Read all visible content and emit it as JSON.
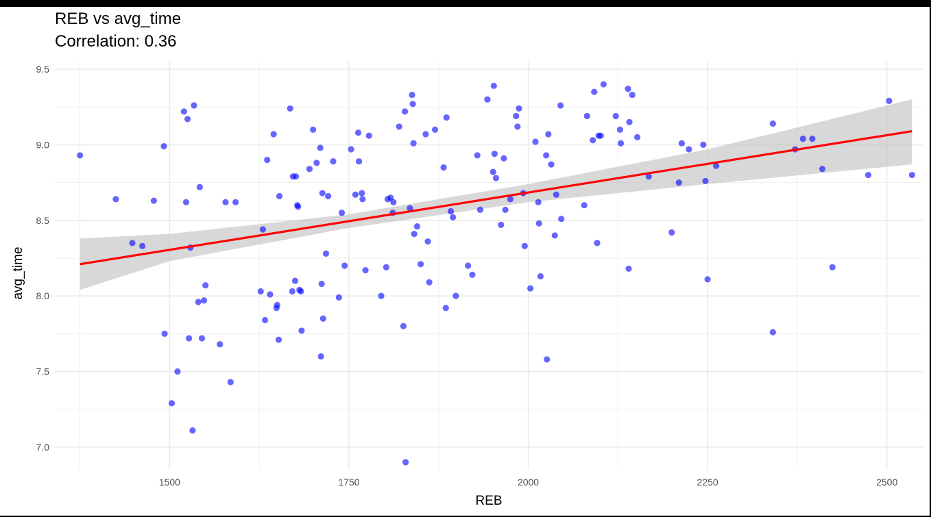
{
  "chart_data": {
    "type": "scatter",
    "title": "REB vs avg_time",
    "subtitle": "Correlation: 0.36",
    "xlabel": "REB",
    "ylabel": "avg_time",
    "xlim": [
      1340,
      2550
    ],
    "ylim": [
      6.85,
      9.55
    ],
    "x_ticks": [
      1500,
      1750,
      2000,
      2250,
      2500
    ],
    "y_ticks": [
      7.0,
      7.5,
      8.0,
      8.5,
      9.0,
      9.5
    ],
    "grid": true,
    "point_color": "#0000ff",
    "trend_color": "#ff0000",
    "band_color": "#bebebe",
    "trend_line": {
      "x": [
        1375,
        2535
      ],
      "y": [
        8.21,
        9.09
      ]
    },
    "confidence_band": {
      "x": [
        1375,
        1500,
        1750,
        2000,
        2250,
        2535
      ],
      "lower": [
        8.04,
        8.23,
        8.45,
        8.62,
        8.74,
        8.87
      ],
      "upper": [
        8.38,
        8.41,
        8.54,
        8.74,
        8.97,
        9.3
      ]
    },
    "points": [
      [
        1375,
        8.93
      ],
      [
        1425,
        8.64
      ],
      [
        1448,
        8.35
      ],
      [
        1462,
        8.33
      ],
      [
        1478,
        8.63
      ],
      [
        1492,
        8.99
      ],
      [
        1493,
        7.75
      ],
      [
        1503,
        7.29
      ],
      [
        1511,
        7.5
      ],
      [
        1520,
        9.22
      ],
      [
        1523,
        8.62
      ],
      [
        1525,
        9.17
      ],
      [
        1527,
        7.72
      ],
      [
        1529,
        8.32
      ],
      [
        1532,
        7.11
      ],
      [
        1534,
        9.26
      ],
      [
        1540,
        7.96
      ],
      [
        1542,
        8.72
      ],
      [
        1545,
        7.72
      ],
      [
        1548,
        7.97
      ],
      [
        1550,
        8.07
      ],
      [
        1570,
        7.68
      ],
      [
        1578,
        8.62
      ],
      [
        1585,
        7.43
      ],
      [
        1592,
        8.62
      ],
      [
        1627,
        8.03
      ],
      [
        1630,
        8.44
      ],
      [
        1633,
        7.84
      ],
      [
        1636,
        8.9
      ],
      [
        1640,
        8.01
      ],
      [
        1645,
        9.07
      ],
      [
        1649,
        7.92
      ],
      [
        1650,
        7.94
      ],
      [
        1652,
        7.71
      ],
      [
        1653,
        8.66
      ],
      [
        1668,
        9.24
      ],
      [
        1671,
        8.03
      ],
      [
        1672,
        8.79
      ],
      [
        1675,
        8.1
      ],
      [
        1676,
        8.79
      ],
      [
        1678,
        8.6
      ],
      [
        1679,
        8.59
      ],
      [
        1681,
        8.04
      ],
      [
        1683,
        8.03
      ],
      [
        1684,
        7.77
      ],
      [
        1695,
        8.84
      ],
      [
        1700,
        9.1
      ],
      [
        1705,
        8.88
      ],
      [
        1710,
        8.98
      ],
      [
        1712,
        8.08
      ],
      [
        1713,
        8.68
      ],
      [
        1714,
        7.85
      ],
      [
        1711,
        7.6
      ],
      [
        1718,
        8.28
      ],
      [
        1721,
        8.66
      ],
      [
        1728,
        8.89
      ],
      [
        1736,
        7.99
      ],
      [
        1740,
        8.55
      ],
      [
        1744,
        8.2
      ],
      [
        1753,
        8.97
      ],
      [
        1759,
        8.67
      ],
      [
        1763,
        9.08
      ],
      [
        1764,
        8.89
      ],
      [
        1768,
        8.68
      ],
      [
        1769,
        8.64
      ],
      [
        1773,
        8.17
      ],
      [
        1778,
        9.06
      ],
      [
        1795,
        8.0
      ],
      [
        1802,
        8.19
      ],
      [
        1804,
        8.64
      ],
      [
        1808,
        8.65
      ],
      [
        1811,
        8.55
      ],
      [
        1812,
        8.62
      ],
      [
        1820,
        9.12
      ],
      [
        1826,
        7.8
      ],
      [
        1828,
        9.22
      ],
      [
        1829,
        6.9
      ],
      [
        1835,
        8.58
      ],
      [
        1838,
        9.33
      ],
      [
        1839,
        9.27
      ],
      [
        1840,
        9.01
      ],
      [
        1841,
        8.41
      ],
      [
        1845,
        8.46
      ],
      [
        1850,
        8.21
      ],
      [
        1857,
        9.07
      ],
      [
        1860,
        8.36
      ],
      [
        1862,
        8.09
      ],
      [
        1870,
        9.1
      ],
      [
        1882,
        8.85
      ],
      [
        1885,
        7.92
      ],
      [
        1886,
        9.18
      ],
      [
        1892,
        8.56
      ],
      [
        1895,
        8.52
      ],
      [
        1899,
        8.0
      ],
      [
        1916,
        8.2
      ],
      [
        1922,
        8.14
      ],
      [
        1929,
        8.93
      ],
      [
        1933,
        8.57
      ],
      [
        1943,
        9.3
      ],
      [
        1951,
        8.82
      ],
      [
        1952,
        9.39
      ],
      [
        1953,
        8.94
      ],
      [
        1955,
        8.78
      ],
      [
        1962,
        8.47
      ],
      [
        1966,
        8.91
      ],
      [
        1968,
        8.57
      ],
      [
        1975,
        8.64
      ],
      [
        1983,
        9.19
      ],
      [
        1985,
        9.12
      ],
      [
        1987,
        9.24
      ],
      [
        1993,
        8.68
      ],
      [
        1995,
        8.33
      ],
      [
        2003,
        8.05
      ],
      [
        2010,
        9.02
      ],
      [
        2014,
        8.62
      ],
      [
        2015,
        8.48
      ],
      [
        2017,
        8.13
      ],
      [
        2026,
        7.58
      ],
      [
        2025,
        8.93
      ],
      [
        2028,
        9.07
      ],
      [
        2032,
        8.87
      ],
      [
        2037,
        8.4
      ],
      [
        2039,
        8.67
      ],
      [
        2045,
        9.26
      ],
      [
        2046,
        8.51
      ],
      [
        2078,
        8.6
      ],
      [
        2082,
        9.19
      ],
      [
        2090,
        9.03
      ],
      [
        2092,
        9.35
      ],
      [
        2096,
        8.35
      ],
      [
        2098,
        9.06
      ],
      [
        2101,
        9.06
      ],
      [
        2105,
        9.4
      ],
      [
        2122,
        9.19
      ],
      [
        2128,
        9.1
      ],
      [
        2129,
        9.01
      ],
      [
        2139,
        9.37
      ],
      [
        2141,
        9.15
      ],
      [
        2140,
        8.18
      ],
      [
        2145,
        9.33
      ],
      [
        2152,
        9.05
      ],
      [
        2168,
        8.79
      ],
      [
        2200,
        8.42
      ],
      [
        2210,
        8.75
      ],
      [
        2214,
        9.01
      ],
      [
        2224,
        8.97
      ],
      [
        2244,
        9.0
      ],
      [
        2247,
        8.76
      ],
      [
        2250,
        8.11
      ],
      [
        2262,
        8.86
      ],
      [
        2341,
        9.14
      ],
      [
        2341,
        7.76
      ],
      [
        2372,
        8.97
      ],
      [
        2383,
        9.04
      ],
      [
        2396,
        9.04
      ],
      [
        2410,
        8.84
      ],
      [
        2424,
        8.19
      ],
      [
        2474,
        8.8
      ],
      [
        2503,
        9.29
      ],
      [
        2535,
        8.8
      ]
    ]
  }
}
